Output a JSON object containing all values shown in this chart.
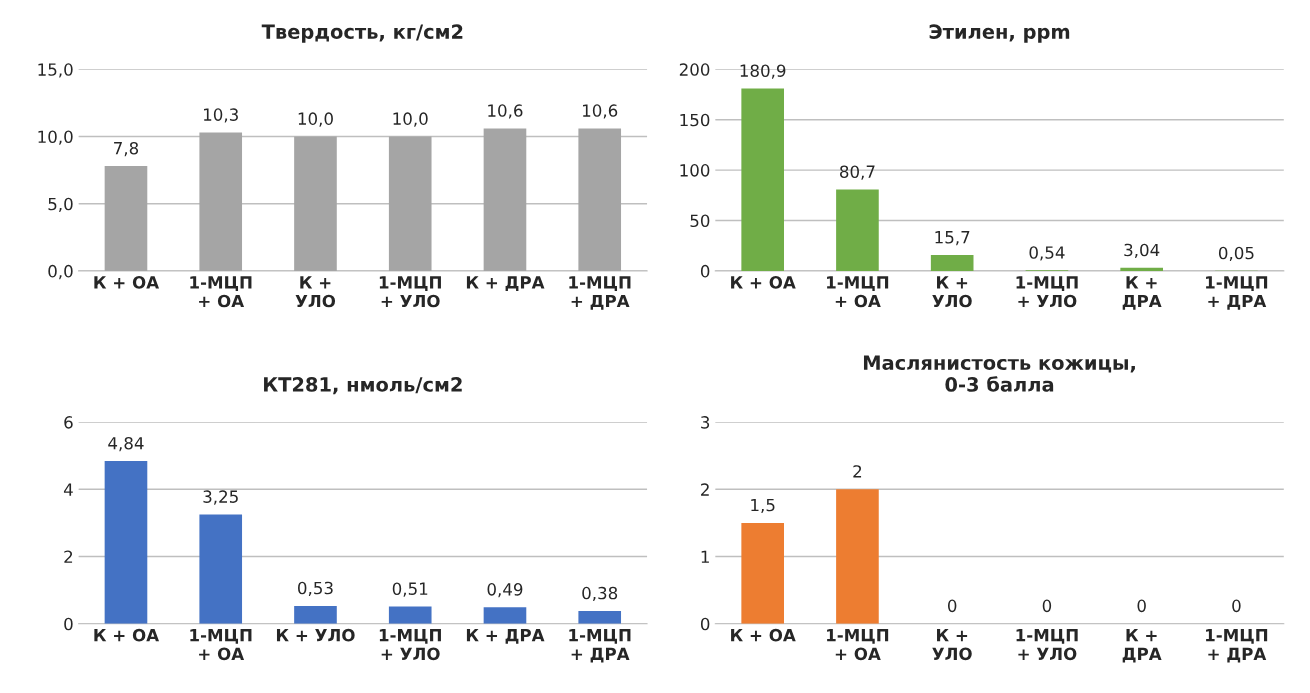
{
  "chart_data": [
    {
      "type": "bar",
      "title": "Твердость, кг/см2",
      "categories": [
        "К + ОА",
        "1-МЦП\n+ ОА",
        "К +\nУЛО",
        "1-МЦП\n+ УЛО",
        "К + ДРА",
        "1-МЦП\n+ ДРА"
      ],
      "values": [
        7.8,
        10.3,
        10.0,
        10.0,
        10.6,
        10.6
      ],
      "value_labels": [
        "7,8",
        "10,3",
        "10,0",
        "10,0",
        "10,6",
        "10,6"
      ],
      "color": "#a5a5a5",
      "ylim": [
        0,
        15
      ],
      "yticks": [
        {
          "value": 0,
          "label": "0,0"
        },
        {
          "value": 5,
          "label": "5,0"
        },
        {
          "value": 10,
          "label": "10,0"
        },
        {
          "value": 15,
          "label": "15,0"
        }
      ],
      "grid": "y",
      "legend": false
    },
    {
      "type": "bar",
      "title": "Этилен, ppm",
      "categories": [
        "К + ОА",
        "1-МЦП\n+ ОА",
        "К +\nУЛО",
        "1-МЦП\n+ УЛО",
        "К +\nДРА",
        "1-МЦП\n+ ДРА"
      ],
      "values": [
        180.9,
        80.7,
        15.7,
        0.54,
        3.04,
        0.05
      ],
      "value_labels": [
        "180,9",
        "80,7",
        "15,7",
        "0,54",
        "3,04",
        "0,05"
      ],
      "color": "#70ad47",
      "ylim": [
        0,
        200
      ],
      "yticks": [
        0,
        50,
        100,
        150,
        200
      ],
      "grid": "y",
      "legend": false
    },
    {
      "type": "bar",
      "title": "КТ281, нмоль/см2",
      "categories": [
        "К + ОА",
        "1-МЦП\n+ ОА",
        "К + УЛО",
        "1-МЦП\n+ УЛО",
        "К + ДРА",
        "1-МЦП\n+ ДРА"
      ],
      "values": [
        4.84,
        3.25,
        0.53,
        0.51,
        0.49,
        0.38
      ],
      "value_labels": [
        "4,84",
        "3,25",
        "0,53",
        "0,51",
        "0,49",
        "0,38"
      ],
      "color": "#4472c4",
      "ylim": [
        0,
        6
      ],
      "yticks": [
        0,
        2,
        4,
        6
      ],
      "grid": "y",
      "legend": false
    },
    {
      "type": "bar",
      "title": "Маслянистость кожицы,\n0-3 балла",
      "categories": [
        "К + ОА",
        "1-МЦП\n+ ОА",
        "К +\nУЛО",
        "1-МЦП\n+ УЛО",
        "К +\nДРА",
        "1-МЦП\n+ ДРА"
      ],
      "values": [
        1.5,
        2,
        0,
        0,
        0,
        0
      ],
      "value_labels": [
        "1,5",
        "2",
        "0",
        "0",
        "0",
        "0"
      ],
      "color": "#ed7d31",
      "ylim": [
        0,
        3
      ],
      "yticks": [
        0,
        1,
        2,
        3
      ],
      "grid": "y",
      "legend": false
    }
  ]
}
